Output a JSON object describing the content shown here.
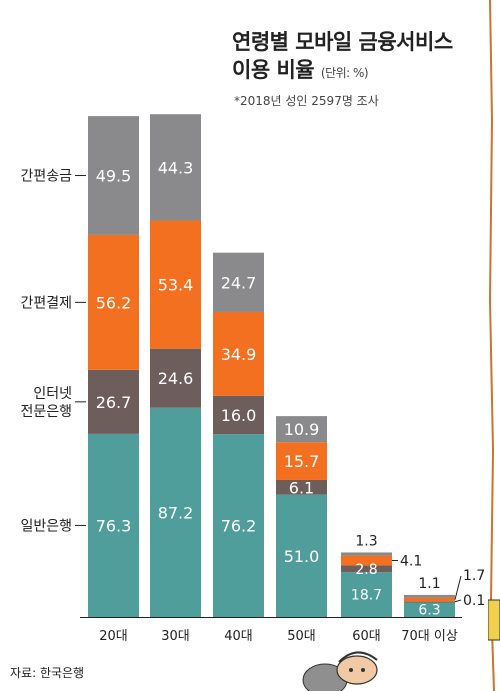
{
  "title_line1": "연령별 모바일 금융서비스",
  "title_line2": "이용 비율",
  "unit": "(단위: %)",
  "subtitle": "*2018년 성인 2597명 조사",
  "source": "자료: 한국은행",
  "colors": {
    "simple_transfer": "#8a8a8c",
    "simple_payment": "#f37021",
    "internet_bank": "#6e5e5b",
    "general_bank": "#4f9e9b"
  },
  "chart_data": {
    "type": "bar",
    "stacked": true,
    "categories": [
      "20대",
      "30대",
      "40대",
      "50대",
      "60대",
      "70대 이상"
    ],
    "series": [
      {
        "name": "일반은행",
        "key": "general_bank",
        "values": [
          76.3,
          87.2,
          76.2,
          51.0,
          18.7,
          6.3
        ],
        "labels": [
          "76.3",
          "87.2",
          "76.2",
          "51.0",
          "18.7",
          "6.3"
        ]
      },
      {
        "name": "인터넷 전문은행",
        "key": "internet_bank",
        "values": [
          26.7,
          24.6,
          16.0,
          6.1,
          2.8,
          0.1
        ],
        "labels": [
          "26.7",
          "24.6",
          "16.0",
          "6.1",
          "2.8",
          "0.1"
        ]
      },
      {
        "name": "간편결제",
        "key": "simple_payment",
        "values": [
          56.2,
          53.4,
          34.9,
          15.7,
          4.1,
          1.7
        ],
        "labels": [
          "56.2",
          "53.4",
          "34.9",
          "15.7",
          "4.1",
          "1.7"
        ]
      },
      {
        "name": "간편송금",
        "key": "simple_transfer",
        "values": [
          49.5,
          44.3,
          24.7,
          10.9,
          1.3,
          1.1
        ],
        "labels": [
          "49.5",
          "44.3",
          "24.7",
          "10.9",
          "1.3",
          "1.1"
        ]
      }
    ]
  }
}
